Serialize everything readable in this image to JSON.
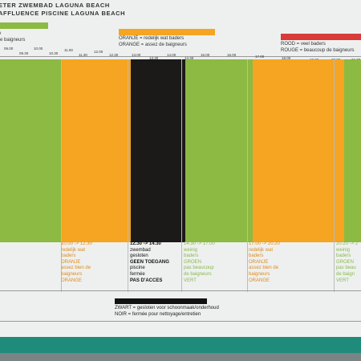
{
  "header": {
    "title_nl": "ETER ZWEMBAD LAGUNA BEACH",
    "title_fr": "AFFLUENCE PISCINE LAGUNA BEACH"
  },
  "legend": {
    "green": {
      "color": "#8cba42",
      "line2": "e baigneurs"
    },
    "orange": {
      "color": "#f5a521",
      "line1": "ORANJE = redelijk wat baders",
      "line2": "ORANGE = assez de baigneurs"
    },
    "red": {
      "color": "#d93a3a",
      "line1": "ROOD = veel baders",
      "line2": "ROUGE = beaucoup de baigneurs"
    }
  },
  "ticks_top": [
    "09.00",
    "10.00",
    "11.00",
    "12.00",
    "13.00",
    "14.00",
    "15.00",
    "16.00",
    "17.00",
    "18.00",
    "19.00",
    "20.00",
    "21.00"
  ],
  "ticks_bottom": [
    "09.30",
    "10.30",
    "11.30",
    "12.30",
    "13.30",
    "14.30",
    "15.30",
    "16.30",
    "17.30",
    "18.30",
    "19.30",
    "20.30",
    "21.30"
  ],
  "colors": {
    "green": "#8cba42",
    "orange": "#f5a521",
    "black": "#1c1a18"
  },
  "cells": {
    "c2": {
      "time": "10.00 -> 12.30",
      "l1": "redelijk wat",
      "l2": "baders",
      "l3": "ORANJE",
      "l4": "assez bien de",
      "l5": "baigneurs",
      "l6": "ORANGE"
    },
    "c3": {
      "time": "12.30 -> 14.30",
      "l1": "zwembad",
      "l2": "gesloten",
      "l3": "GEEN TOEGANG",
      "l4": "piscine",
      "l5": "fermée",
      "l6": "PAS D'ACCES"
    },
    "c4": {
      "time": "14.30 -> 17.00",
      "l1": "weinig",
      "l2": "baders",
      "l3": "GROEN",
      "l4": "pas beaucoup",
      "l5": "de baigneurs",
      "l6": "VERT"
    },
    "c5": {
      "time": "17.00 -> 20.20",
      "l1": "redelijk wat",
      "l2": "baders",
      "l3": "ORANJE",
      "l4": "assez bien de",
      "l5": "baigneurs",
      "l6": "ORANGE"
    },
    "c6": {
      "time": "20.20 -> 2",
      "l1": "weinig",
      "l2": "baders",
      "l3": "GROEN",
      "l4": "pas beau",
      "l5": "de baign",
      "l6": "VERT"
    }
  },
  "footer": {
    "line1": "ZWART = gesloten voor schoonmaak/onderhoud",
    "line2": "NOIR = fermée pour nettoyage/entretien"
  }
}
